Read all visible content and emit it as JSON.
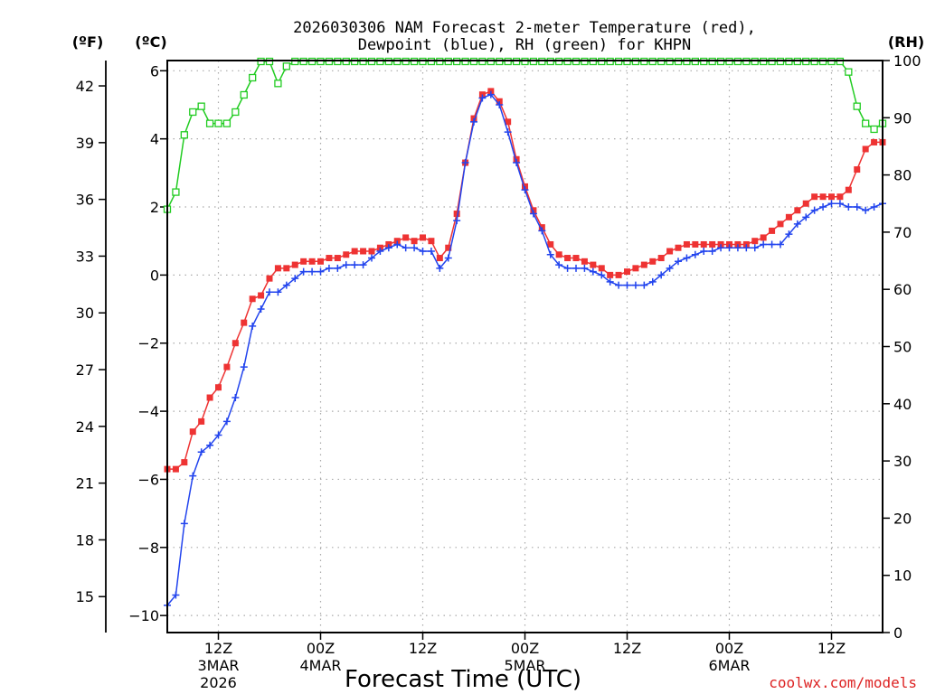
{
  "title": {
    "line1": "2026030306 NAM Forecast 2-meter Temperature (red),",
    "line2": "Dewpoint (blue), RH (green) for KHPN"
  },
  "units": {
    "fahrenheit": "(ºF)",
    "celsius": "(ºC)",
    "rh": "(RH)"
  },
  "credit": "coolwx.com/models",
  "colors": {
    "temperature": "#ee3333",
    "dewpoint": "#2244ee",
    "rh": "#22cc22",
    "credit": "#dd2222"
  },
  "chart_data": {
    "type": "line",
    "title": "2026030306 NAM Forecast 2-meter Temperature (red), Dewpoint (blue), RH (green) for KHPN",
    "xlabel": "Forecast Time (UTC)",
    "x_unit": "forecast hour from 2026-03-03 06Z",
    "xlim": [
      0,
      84
    ],
    "x_ticks": [
      {
        "hour": 6,
        "label": "12Z",
        "sub1": "3MAR",
        "sub2": "2026"
      },
      {
        "hour": 18,
        "label": "00Z",
        "sub1": "4MAR",
        "sub2": ""
      },
      {
        "hour": 30,
        "label": "12Z",
        "sub1": "",
        "sub2": ""
      },
      {
        "hour": 42,
        "label": "00Z",
        "sub1": "5MAR",
        "sub2": ""
      },
      {
        "hour": 54,
        "label": "12Z",
        "sub1": "",
        "sub2": ""
      },
      {
        "hour": 66,
        "label": "00Z",
        "sub1": "6MAR",
        "sub2": ""
      },
      {
        "hour": 78,
        "label": "12Z",
        "sub1": "",
        "sub2": ""
      }
    ],
    "y_left_celsius": {
      "label": "(ºC)",
      "ylim": [
        -10.5,
        6.3
      ],
      "ticks": [
        -10,
        -8,
        -6,
        -4,
        -2,
        0,
        2,
        4,
        6
      ],
      "tick_labels": [
        "−10",
        "−8",
        "−6",
        "−4",
        "−2",
        "0",
        "2",
        "4",
        "6"
      ]
    },
    "y_left_fahrenheit": {
      "label": "(ºF)",
      "ticks": [
        15,
        18,
        21,
        24,
        27,
        30,
        33,
        36,
        39,
        42
      ]
    },
    "y_right_rh": {
      "label": "(RH)",
      "ylim": [
        0,
        100
      ],
      "ticks": [
        0,
        10,
        20,
        30,
        40,
        50,
        60,
        70,
        80,
        90,
        100
      ]
    },
    "grid": true,
    "series": [
      {
        "name": "2-meter Temperature",
        "axis": "celsius",
        "marker": "filled-square",
        "x": [
          0,
          1,
          2,
          3,
          4,
          5,
          6,
          7,
          8,
          9,
          10,
          11,
          12,
          13,
          14,
          15,
          16,
          17,
          18,
          19,
          20,
          21,
          22,
          23,
          24,
          25,
          26,
          27,
          28,
          29,
          30,
          31,
          32,
          33,
          34,
          35,
          36,
          37,
          38,
          39,
          40,
          41,
          42,
          43,
          44,
          45,
          46,
          47,
          48,
          49,
          50,
          51,
          52,
          53,
          54,
          55,
          56,
          57,
          58,
          59,
          60,
          61,
          62,
          63,
          64,
          65,
          66,
          67,
          68,
          69,
          70,
          71,
          72,
          73,
          74,
          75,
          76,
          77,
          78,
          79,
          80,
          81,
          82,
          83,
          84
        ],
        "values": [
          -5.7,
          -5.7,
          -5.5,
          -4.6,
          -4.3,
          -3.6,
          -3.3,
          -2.7,
          -2.0,
          -1.4,
          -0.7,
          -0.6,
          -0.1,
          0.2,
          0.2,
          0.3,
          0.4,
          0.4,
          0.4,
          0.5,
          0.5,
          0.6,
          0.7,
          0.7,
          0.7,
          0.8,
          0.9,
          1.0,
          1.1,
          1.0,
          1.1,
          1.0,
          0.5,
          0.8,
          1.8,
          3.3,
          4.6,
          5.3,
          5.4,
          5.1,
          4.5,
          3.4,
          2.6,
          1.9,
          1.4,
          0.9,
          0.6,
          0.5,
          0.5,
          0.4,
          0.3,
          0.2,
          0.0,
          0.0,
          0.1,
          0.2,
          0.3,
          0.4,
          0.5,
          0.7,
          0.8,
          0.9,
          0.9,
          0.9,
          0.9,
          0.9,
          0.9,
          0.9,
          0.9,
          1.0,
          1.1,
          1.3,
          1.5,
          1.7,
          1.9,
          2.1,
          2.3,
          2.3,
          2.3,
          2.3,
          2.5,
          3.1,
          3.7,
          3.9,
          3.9
        ]
      },
      {
        "name": "Dewpoint",
        "axis": "celsius",
        "marker": "plus",
        "x": [
          0,
          1,
          2,
          3,
          4,
          5,
          6,
          7,
          8,
          9,
          10,
          11,
          12,
          13,
          14,
          15,
          16,
          17,
          18,
          19,
          20,
          21,
          22,
          23,
          24,
          25,
          26,
          27,
          28,
          29,
          30,
          31,
          32,
          33,
          34,
          35,
          36,
          37,
          38,
          39,
          40,
          41,
          42,
          43,
          44,
          45,
          46,
          47,
          48,
          49,
          50,
          51,
          52,
          53,
          54,
          55,
          56,
          57,
          58,
          59,
          60,
          61,
          62,
          63,
          64,
          65,
          66,
          67,
          68,
          69,
          70,
          71,
          72,
          73,
          74,
          75,
          76,
          77,
          78,
          79,
          80,
          81,
          82,
          83,
          84
        ],
        "values": [
          -9.7,
          -9.4,
          -7.3,
          -5.9,
          -5.2,
          -5.0,
          -4.7,
          -4.3,
          -3.6,
          -2.7,
          -1.5,
          -1.0,
          -0.5,
          -0.5,
          -0.3,
          -0.1,
          0.1,
          0.1,
          0.1,
          0.2,
          0.2,
          0.3,
          0.3,
          0.3,
          0.5,
          0.7,
          0.8,
          0.9,
          0.8,
          0.8,
          0.7,
          0.7,
          0.2,
          0.5,
          1.6,
          3.3,
          4.5,
          5.2,
          5.3,
          5.0,
          4.2,
          3.3,
          2.5,
          1.8,
          1.3,
          0.6,
          0.3,
          0.2,
          0.2,
          0.2,
          0.1,
          0.0,
          -0.2,
          -0.3,
          -0.3,
          -0.3,
          -0.3,
          -0.2,
          0.0,
          0.2,
          0.4,
          0.5,
          0.6,
          0.7,
          0.7,
          0.8,
          0.8,
          0.8,
          0.8,
          0.8,
          0.9,
          0.9,
          0.9,
          1.2,
          1.5,
          1.7,
          1.9,
          2.0,
          2.1,
          2.1,
          2.0,
          2.0,
          1.9,
          2.0,
          2.1
        ]
      },
      {
        "name": "Relative Humidity",
        "axis": "rh",
        "marker": "open-square",
        "x": [
          0,
          1,
          2,
          3,
          4,
          5,
          6,
          7,
          8,
          9,
          10,
          11,
          12,
          13,
          14,
          15,
          16,
          17,
          18,
          19,
          20,
          21,
          22,
          23,
          24,
          25,
          26,
          27,
          28,
          29,
          30,
          31,
          32,
          33,
          34,
          35,
          36,
          37,
          38,
          39,
          40,
          41,
          42,
          43,
          44,
          45,
          46,
          47,
          48,
          49,
          50,
          51,
          52,
          53,
          54,
          55,
          56,
          57,
          58,
          59,
          60,
          61,
          62,
          63,
          64,
          65,
          66,
          67,
          68,
          69,
          70,
          71,
          72,
          73,
          74,
          75,
          76,
          77,
          78,
          79,
          80,
          81,
          82,
          83,
          84
        ],
        "values": [
          74,
          77,
          87,
          91,
          92,
          89,
          89,
          89,
          91,
          94,
          97,
          100,
          100,
          96,
          99,
          100,
          101,
          101,
          101,
          100,
          101,
          100,
          100,
          101,
          102,
          102,
          102,
          101,
          101,
          103,
          100,
          100,
          101,
          101,
          102,
          102,
          103,
          102,
          101,
          103,
          103,
          102,
          102,
          101,
          102,
          101,
          101,
          101,
          101,
          101,
          101,
          101,
          100,
          101,
          101,
          101,
          101,
          101,
          101,
          101,
          101,
          101,
          102,
          101,
          101,
          101,
          101,
          101,
          101,
          102,
          102,
          102,
          101,
          103,
          103,
          103,
          103,
          103,
          104,
          103,
          98,
          92,
          89,
          88,
          89
        ]
      }
    ]
  }
}
